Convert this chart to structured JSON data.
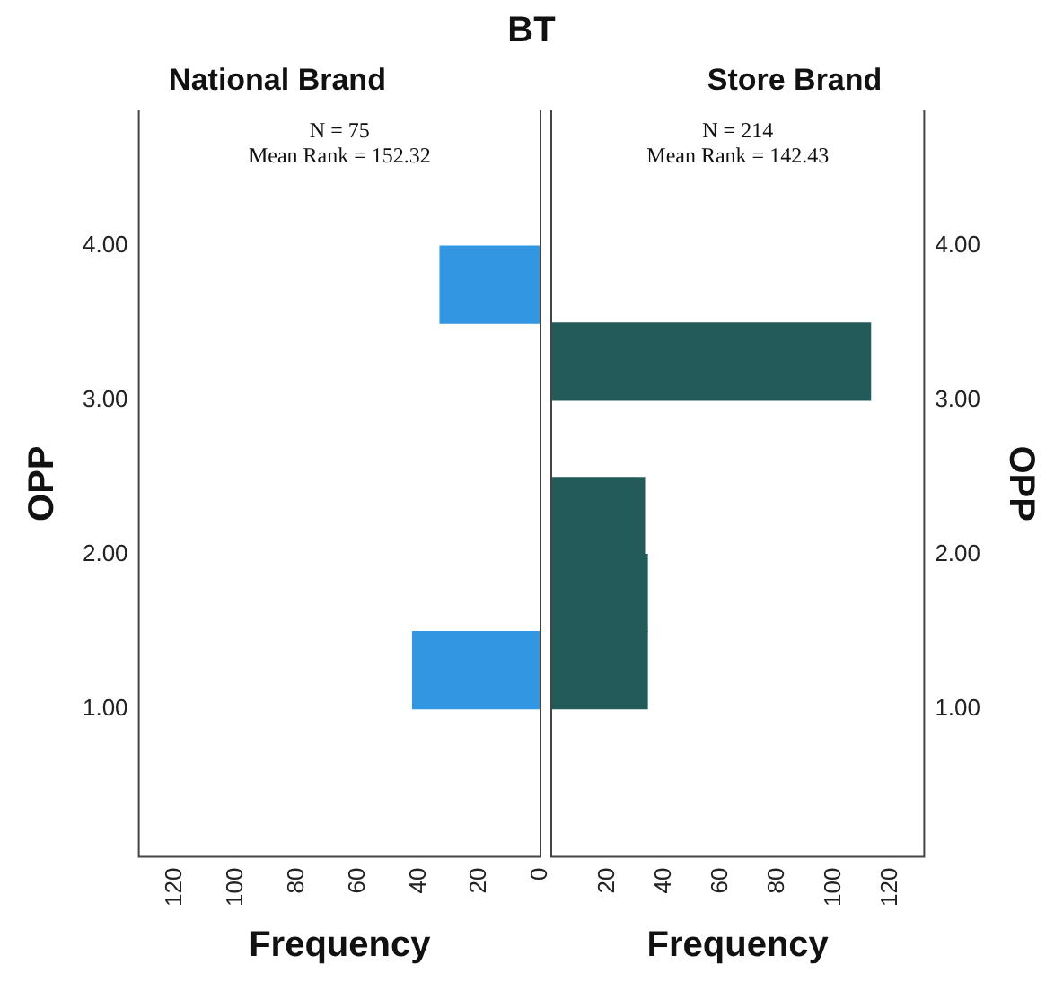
{
  "chart_data": [
    {
      "type": "histogram",
      "orientation": "horizontal",
      "title": "BT",
      "subtitle": "National Brand",
      "xlabel": "Frequency",
      "ylabel": "OPP",
      "annotations": [
        "N = 75",
        "Mean Rank = 152.32"
      ],
      "bins": [
        1,
        1.5,
        2,
        2.5,
        3,
        3.5,
        4
      ],
      "values": [
        42,
        0,
        0,
        0,
        0,
        33
      ],
      "color": "#3296e3",
      "xlim": [
        132,
        0
      ],
      "xticks": [
        0,
        20,
        40,
        60,
        80,
        100,
        120
      ],
      "ylim": [
        0.04,
        4.88
      ],
      "yticks": [
        {
          "value": 1,
          "label": "1.00"
        },
        {
          "value": 2,
          "label": "2.00"
        },
        {
          "value": 3,
          "label": "3.00"
        },
        {
          "value": 4,
          "label": "4.00"
        }
      ],
      "grid": false,
      "legend": false
    },
    {
      "type": "histogram",
      "orientation": "horizontal",
      "subtitle": "Store Brand",
      "xlabel": "Frequency",
      "ylabel": "OPP",
      "annotations": [
        "N = 214",
        "Mean Rank = 142.43"
      ],
      "bins": [
        1,
        1.5,
        2,
        2.5,
        3,
        3.5,
        4
      ],
      "values": [
        34,
        34,
        33,
        0,
        113,
        0
      ],
      "color": "#235b5b",
      "xlim": [
        0,
        132
      ],
      "xticks": [
        {
          "value": 0,
          "label": null
        },
        20,
        40,
        60,
        80,
        100,
        120
      ],
      "ylim": [
        0.04,
        4.88
      ],
      "yticks": [
        {
          "value": 1,
          "label": "1.00"
        },
        {
          "value": 2,
          "label": "2.00"
        },
        {
          "value": 3,
          "label": "3.00"
        },
        {
          "value": 4,
          "label": "4.00"
        }
      ],
      "grid": false,
      "legend": false
    }
  ]
}
